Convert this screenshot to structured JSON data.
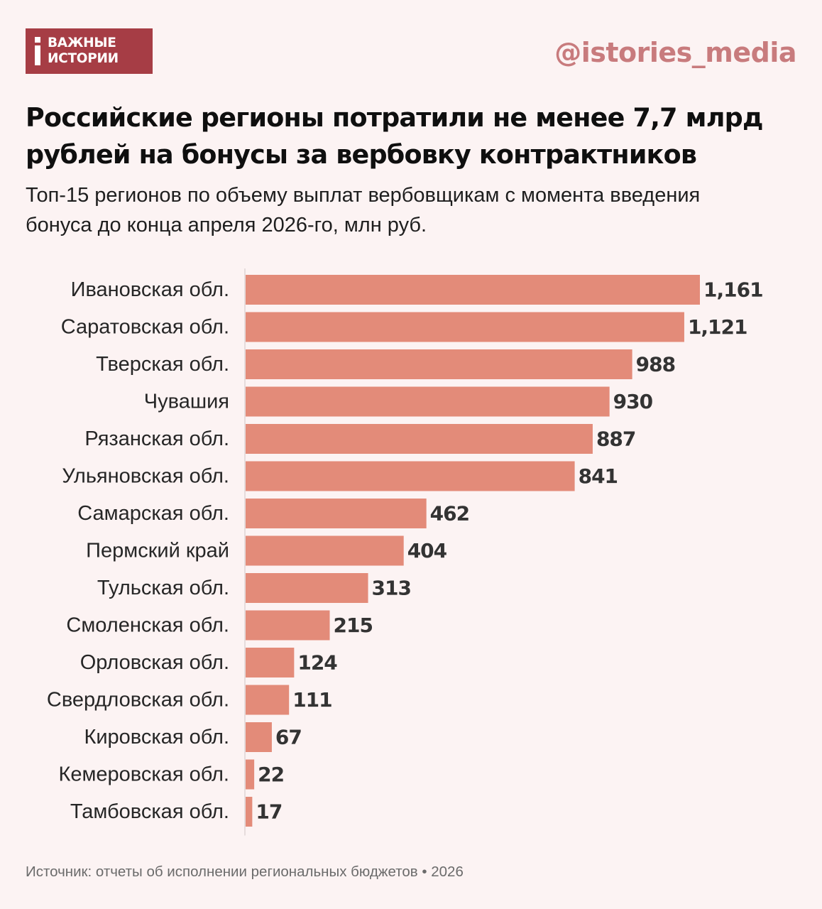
{
  "header": {
    "logo_line1": "ВАЖНЫЕ",
    "logo_line2": "ИСТОРИИ",
    "handle": "@istories_media"
  },
  "title_lines": [
    "Российские регионы потратили не менее 7,7 млрд",
    "рублей на бонусы за вербовку контрактников"
  ],
  "subtitle_lines": [
    "Топ-15 регионов по объему выплат вербовщикам с момента введения",
    "бонуса до конца апреля 2026-го, млн руб."
  ],
  "source": "Источник: отчеты об исполнении региональных бюджетов • 2026",
  "colors": {
    "background": "#fcf3f3",
    "bar": "#e38b79",
    "brand": "#a63d45",
    "handle": "#c87b7d",
    "value_text": "#333333",
    "axis": "#e6dcdc"
  },
  "chart_data": {
    "type": "bar",
    "orientation": "horizontal",
    "categories": [
      "Ивановская обл.",
      "Саратовская обл.",
      "Тверская обл.",
      "Чувашия",
      "Рязанская обл.",
      "Ульяновская обл.",
      "Самарская обл.",
      "Пермский край",
      "Тульская обл.",
      "Смоленская обл.",
      "Орловская обл.",
      "Свердловская обл.",
      "Кировская обл.",
      "Кемеровская обл.",
      "Тамбовская обл."
    ],
    "values": [
      1161,
      1121,
      988,
      930,
      887,
      841,
      462,
      404,
      313,
      215,
      124,
      111,
      67,
      22,
      17
    ],
    "value_labels": [
      "1,161",
      "1,121",
      "988",
      "930",
      "887",
      "841",
      "462",
      "404",
      "313",
      "215",
      "124",
      "111",
      "67",
      "22",
      "17"
    ],
    "xlim": [
      0,
      1161
    ],
    "grid": false,
    "legend": "none"
  }
}
